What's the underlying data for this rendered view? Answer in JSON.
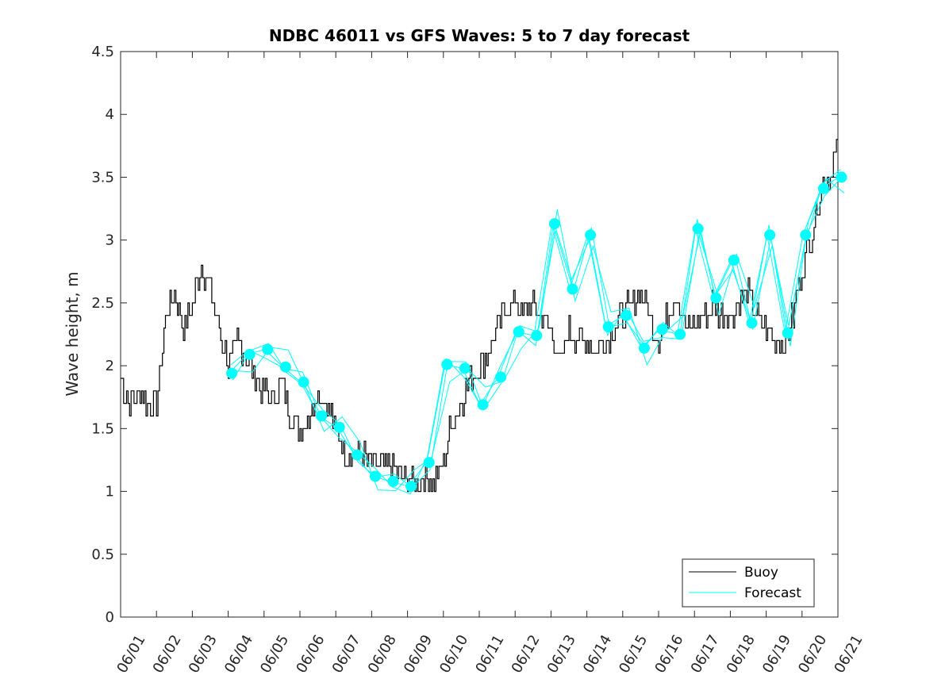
{
  "chart_data": {
    "type": "line",
    "title": "NDBC 46011 vs GFS Waves: 5 to 7 day forecast",
    "xlabel": "",
    "ylabel": "Wave height, m",
    "xlim": [
      0,
      20
    ],
    "ylim": [
      0,
      4.5
    ],
    "x_ticks": [
      "06/01",
      "06/02",
      "06/03",
      "06/04",
      "06/05",
      "06/06",
      "06/07",
      "06/08",
      "06/09",
      "06/10",
      "06/11",
      "06/12",
      "06/13",
      "06/14",
      "06/15",
      "06/16",
      "06/17",
      "06/18",
      "06/19",
      "06/20",
      "06/21"
    ],
    "y_ticks": [
      "0",
      "0.5",
      "1",
      "1.5",
      "2",
      "2.5",
      "3",
      "3.5",
      "4",
      "4.5"
    ],
    "x_unit": "days since 06/01",
    "legend": {
      "position": "bottom-right",
      "entries": [
        "Buoy",
        "Forecast"
      ]
    },
    "colors": {
      "buoy": "#000000",
      "forecast": "#00ffff",
      "axis": "#262626"
    },
    "series": [
      {
        "name": "Buoy",
        "x": [
          0,
          0.25,
          0.5,
          0.75,
          1,
          1.25,
          1.5,
          1.75,
          2,
          2.25,
          2.5,
          2.75,
          3,
          3.25,
          3.5,
          3.75,
          4,
          4.25,
          4.5,
          4.75,
          5,
          5.25,
          5.5,
          5.75,
          6,
          6.25,
          6.5,
          6.75,
          7,
          7.25,
          7.5,
          7.75,
          8,
          8.25,
          8.5,
          8.75,
          9,
          9.25,
          9.5,
          9.75,
          10,
          10.25,
          10.5,
          10.75,
          11,
          11.25,
          11.5,
          11.75,
          12,
          12.25,
          12.5,
          12.75,
          13,
          13.25,
          13.5,
          13.75,
          14,
          14.25,
          14.5,
          14.75,
          15,
          15.25,
          15.5,
          15.75,
          16,
          16.25,
          16.5,
          16.75,
          17,
          17.25,
          17.5,
          17.75,
          18,
          18.25,
          18.5,
          18.75,
          19,
          19.25,
          19.5,
          19.75,
          20
        ],
        "y": [
          1.9,
          1.7,
          1.8,
          1.7,
          1.7,
          2.4,
          2.6,
          2.3,
          2.5,
          2.8,
          2.6,
          2.3,
          2.0,
          2.2,
          2.1,
          1.9,
          1.8,
          1.7,
          1.9,
          1.6,
          1.5,
          1.6,
          1.8,
          1.7,
          1.5,
          1.3,
          1.3,
          1.3,
          1.2,
          1.2,
          1.2,
          1.1,
          1.1,
          1.1,
          1.1,
          1.1,
          1.2,
          1.6,
          1.7,
          1.9,
          2.0,
          2.1,
          2.3,
          2.5,
          2.5,
          2.4,
          2.5,
          2.4,
          2.3,
          2.0,
          2.3,
          2.2,
          2.2,
          2.1,
          2.2,
          2.3,
          2.4,
          2.5,
          2.6,
          2.4,
          2.2,
          2.4,
          2.6,
          2.3,
          2.3,
          2.4,
          2.5,
          2.4,
          2.4,
          2.5,
          2.6,
          2.4,
          2.3,
          2.2,
          2.2,
          2.4,
          2.8,
          3.0,
          3.4,
          3.5,
          3.8
        ]
      },
      {
        "name": "Forecast",
        "x": [
          3.1,
          3.6,
          4.1,
          4.6,
          5.1,
          5.6,
          6.1,
          6.6,
          7.1,
          7.6,
          8.1,
          8.6,
          9.1,
          9.6,
          10.1,
          10.6,
          11.1,
          11.6,
          12.1,
          12.6,
          13.1,
          13.6,
          14.1,
          14.6,
          15.1,
          15.6,
          16.1,
          16.6,
          17.1,
          17.6,
          18.1,
          18.6,
          19.1,
          19.6,
          20.1
        ],
        "y": [
          1.94,
          2.09,
          2.13,
          1.99,
          1.87,
          1.6,
          1.51,
          1.29,
          1.12,
          1.08,
          1.04,
          1.23,
          2.01,
          1.98,
          1.69,
          1.91,
          2.27,
          2.24,
          3.13,
          2.61,
          3.04,
          2.31,
          2.4,
          2.14,
          2.29,
          2.25,
          3.09,
          2.54,
          2.84,
          2.34,
          3.04,
          2.26,
          3.04,
          3.41,
          3.5
        ]
      }
    ]
  }
}
